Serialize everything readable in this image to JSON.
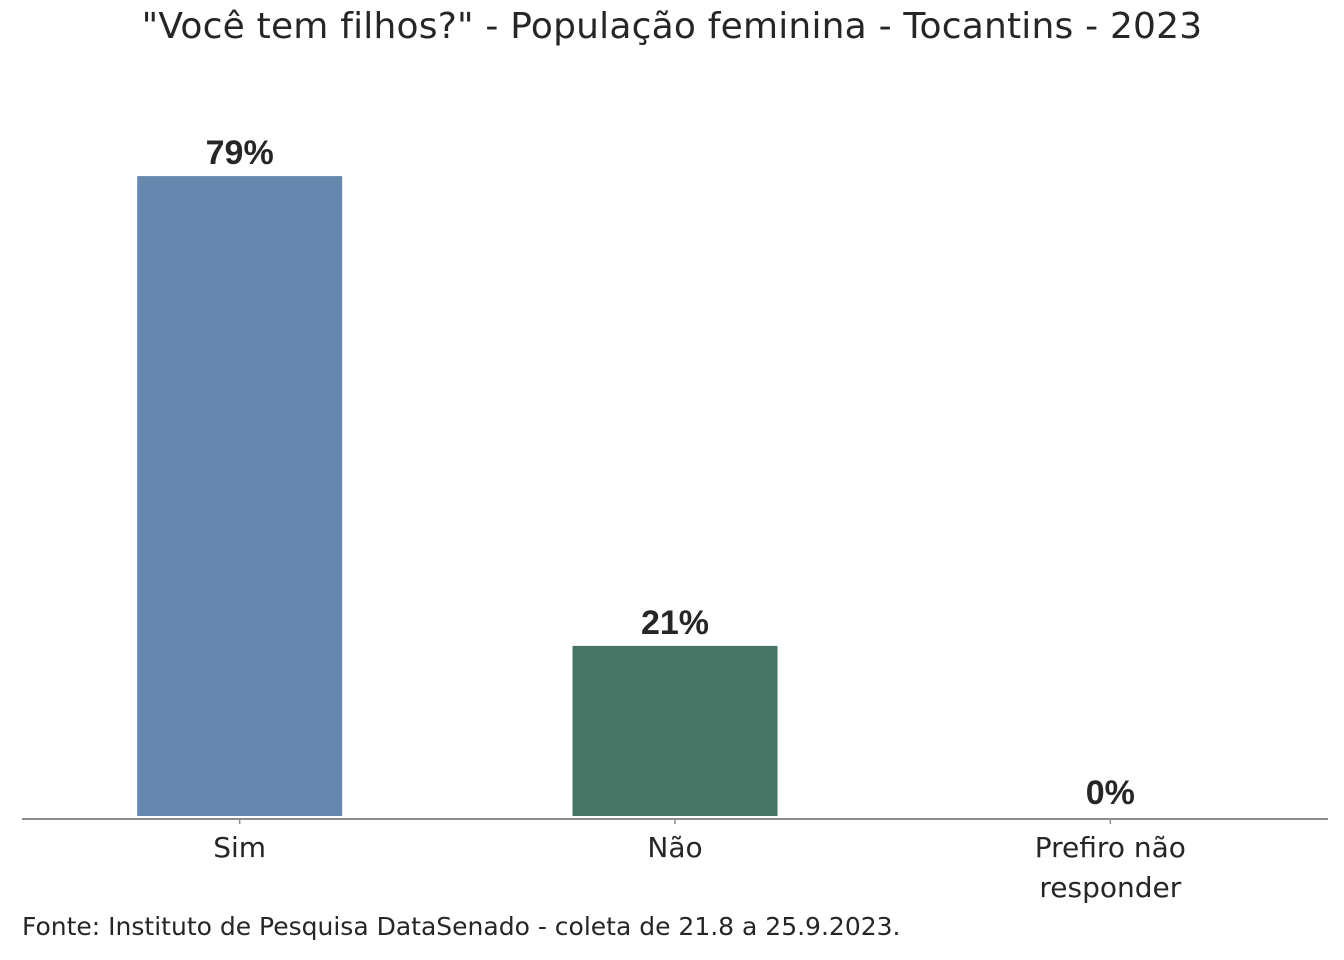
{
  "chart_data": {
    "type": "bar",
    "title": "\"Você tem filhos?\" - População feminina - Tocantins - 2023",
    "categories": [
      "Sim",
      "Não",
      "Prefiro não responder"
    ],
    "category_lines": [
      [
        "Sim"
      ],
      [
        "Não"
      ],
      [
        "Prefiro não",
        "responder"
      ]
    ],
    "values": [
      79,
      21,
      0
    ],
    "value_labels": [
      "79%",
      "21%",
      "0%"
    ],
    "colors": [
      "#6688ae",
      "#467565",
      "#8c8c8c"
    ],
    "xlabel": "",
    "ylabel": "",
    "ylim": [
      0,
      80
    ],
    "grid": false,
    "source": "Fonte: Instituto de Pesquisa DataSenado - coleta de 21.8 a 25.9.2023."
  }
}
